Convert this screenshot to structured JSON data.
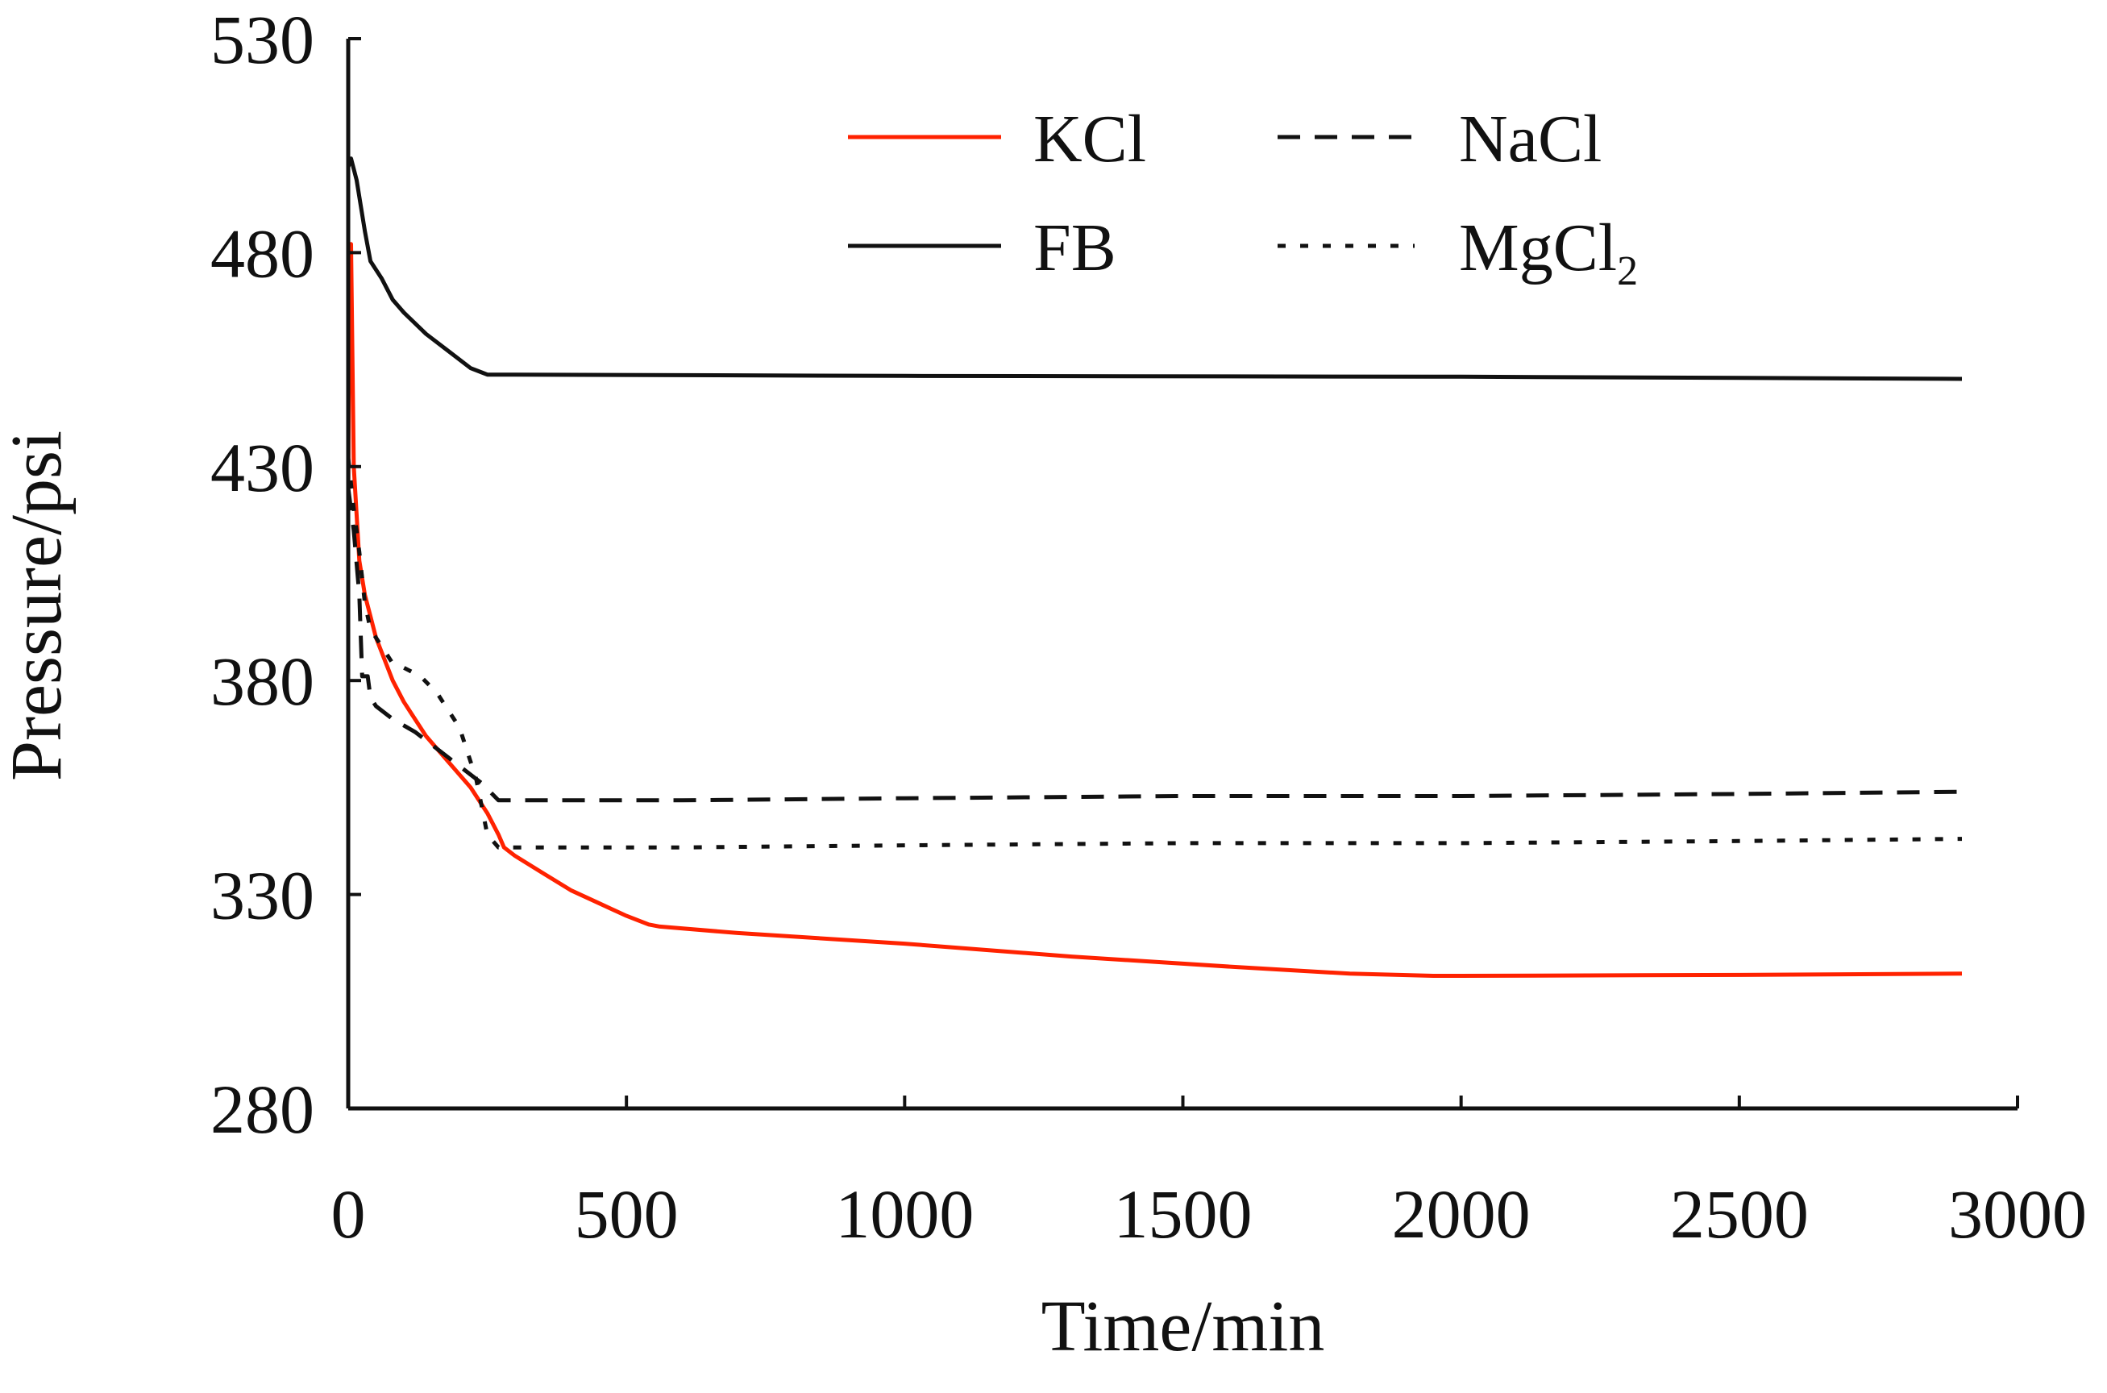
{
  "chart_data": {
    "type": "line",
    "title": "",
    "xlabel": "Time/min",
    "ylabel": "Pressure/psi",
    "xlim": [
      0,
      3000
    ],
    "ylim": [
      280,
      530
    ],
    "xticks": [
      0,
      500,
      1000,
      1500,
      2000,
      2500,
      3000
    ],
    "yticks": [
      280,
      330,
      380,
      430,
      480,
      530
    ],
    "grid": false,
    "legend_position": "top-center",
    "series": [
      {
        "name": "KCl",
        "color": "#ff2200",
        "style": "solid",
        "x": [
          0,
          2,
          5,
          10,
          20,
          30,
          50,
          80,
          100,
          140,
          180,
          220,
          250,
          270,
          280,
          300,
          350,
          400,
          450,
          500,
          540,
          560,
          700,
          1000,
          1300,
          1600,
          1800,
          1950,
          2000,
          2500,
          2900
        ],
        "y": [
          420,
          470,
          482,
          430,
          408,
          400,
          390,
          380,
          375,
          367,
          361,
          355,
          349,
          344,
          341,
          339,
          335,
          331,
          328,
          325,
          323,
          322.5,
          321,
          318.5,
          315.5,
          313,
          311.5,
          311,
          311,
          311.2,
          311.5
        ]
      },
      {
        "name": "NaCl",
        "color": "#111111",
        "style": "dashed",
        "x": [
          0,
          10,
          20,
          25,
          30,
          35,
          40,
          50,
          80,
          120,
          160,
          200,
          240,
          270,
          300,
          600,
          1000,
          1500,
          2000,
          2500,
          2900
        ],
        "y": [
          425,
          415,
          400,
          381,
          381,
          381,
          376,
          374,
          371,
          368,
          364,
          360,
          356,
          352,
          352,
          352,
          352.5,
          353,
          353,
          353.5,
          354
        ]
      },
      {
        "name": "MgCl",
        "color": "#111111",
        "style": "dotted",
        "x": [
          0,
          10,
          20,
          30,
          40,
          60,
          80,
          100,
          130,
          160,
          180,
          200,
          230,
          250,
          270,
          280,
          300,
          600,
          1000,
          1500,
          2000,
          2500,
          2900
        ],
        "y": [
          432,
          420,
          410,
          398,
          392,
          388,
          384,
          383,
          381,
          377,
          373,
          369,
          357,
          344,
          341,
          341,
          341,
          341,
          341.5,
          342,
          342,
          342.5,
          343
        ]
      },
      {
        "name": "FB",
        "color": "#111111",
        "style": "solid",
        "x": [
          0,
          5,
          15,
          30,
          40,
          60,
          80,
          100,
          140,
          180,
          220,
          240,
          250,
          300,
          1000,
          2000,
          2900
        ],
        "y": [
          500,
          502,
          497,
          485,
          478,
          474,
          469,
          466,
          461,
          457,
          453,
          452,
          451.5,
          451.5,
          451.2,
          451,
          450.5
        ]
      }
    ],
    "legend": {
      "items": [
        {
          "key": "kcl",
          "label": "KCl",
          "subscript": "",
          "color": "#ff2200",
          "style": "solid"
        },
        {
          "key": "fb",
          "label": "FB",
          "subscript": "",
          "color": "#111111",
          "style": "solid"
        },
        {
          "key": "nacl",
          "label": "NaCl",
          "subscript": "",
          "color": "#111111",
          "style": "dashed"
        },
        {
          "key": "mgcl2",
          "label": "MgCl",
          "subscript": "2",
          "color": "#111111",
          "style": "dotted"
        }
      ]
    }
  }
}
